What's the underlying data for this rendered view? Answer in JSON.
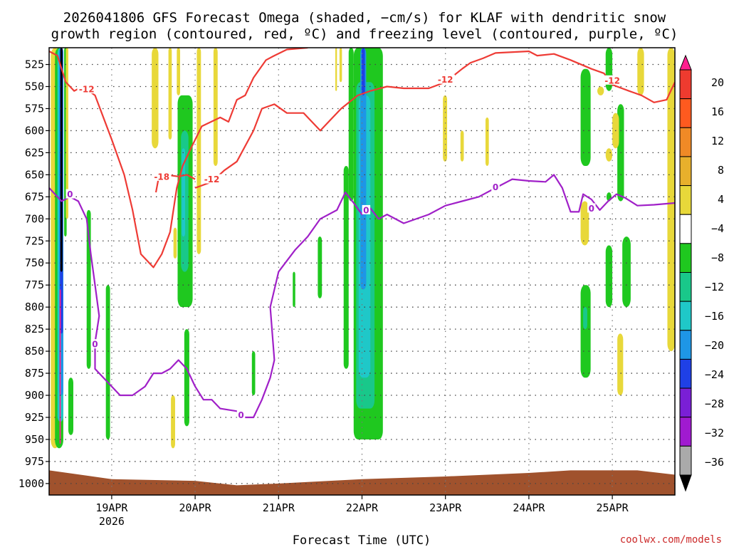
{
  "chart_data": {
    "type": "heatmap",
    "title_lines": [
      "2026041806 GFS Forecast Omega (shaded, −cm/s) for KLAF with dendritic snow",
      "growth region (contoured, red, ºC) and freezing level (contoured, purple, ºC)"
    ],
    "xlabel": "Forecast Time (UTC)",
    "ylabel": "",
    "y_ticks": [
      525,
      550,
      575,
      600,
      625,
      650,
      675,
      700,
      725,
      750,
      775,
      800,
      825,
      850,
      875,
      900,
      925,
      950,
      975,
      1000
    ],
    "y_range": [
      1013,
      506
    ],
    "x_range": [
      -0.75,
      6.75
    ],
    "x_ticks": [
      {
        "day": 0,
        "label": "19APR",
        "sub": "2026"
      },
      {
        "day": 1,
        "label": "20APR",
        "sub": ""
      },
      {
        "day": 2,
        "label": "21APR",
        "sub": ""
      },
      {
        "day": 3,
        "label": "22APR",
        "sub": ""
      },
      {
        "day": 4,
        "label": "23APR",
        "sub": ""
      },
      {
        "day": 5,
        "label": "24APR",
        "sub": ""
      },
      {
        "day": 6,
        "label": "25APR",
        "sub": ""
      }
    ],
    "grid": true,
    "colorbar": {
      "labels": [
        "20",
        "16",
        "12",
        "8",
        "4",
        "−4",
        "−8",
        "−12",
        "−16",
        "−20",
        "−24",
        "−28",
        "−32",
        "−36"
      ],
      "colors": [
        "#ff1f8f",
        "#ee3b2f",
        "#ff5a1f",
        "#f08a26",
        "#e8b02c",
        "#e8d83a",
        "#ffffff",
        "#1fc81f",
        "#19c88a",
        "#1fc8c8",
        "#1e96e6",
        "#1f40e6",
        "#7a1fd6",
        "#a01ad0",
        "#aaaaaa",
        "#000000"
      ]
    },
    "omega_features": [
      {
        "x0": -0.73,
        "x1": -0.63,
        "p0": 506,
        "p1": 960,
        "color": "#e8d83a"
      },
      {
        "x0": -0.68,
        "x1": -0.58,
        "p0": 506,
        "p1": 960,
        "color": "#1fc81f"
      },
      {
        "x0": -0.65,
        "x1": -0.58,
        "p0": 506,
        "p1": 930,
        "color": "#1fc8c8"
      },
      {
        "x0": -0.63,
        "x1": -0.58,
        "p0": 506,
        "p1": 900,
        "color": "#1e96e6"
      },
      {
        "x0": -0.62,
        "x1": -0.585,
        "p0": 506,
        "p1": 830,
        "color": "#1f40e6"
      },
      {
        "x0": -0.615,
        "x1": -0.59,
        "p0": 506,
        "p1": 760,
        "color": "#000000"
      },
      {
        "x0": -0.625,
        "x1": -0.61,
        "p0": 780,
        "p1": 955,
        "color": "#ff1f8f"
      },
      {
        "x0": -0.57,
        "x1": -0.54,
        "p0": 506,
        "p1": 720,
        "color": "#1fc81f"
      },
      {
        "x0": -0.55,
        "x1": -0.52,
        "p0": 506,
        "p1": 700,
        "color": "#e8d83a"
      },
      {
        "x0": -0.52,
        "x1": -0.46,
        "p0": 880,
        "p1": 945,
        "color": "#1fc81f"
      },
      {
        "x0": -0.3,
        "x1": -0.25,
        "p0": 690,
        "p1": 870,
        "color": "#1fc81f"
      },
      {
        "x0": -0.07,
        "x1": -0.02,
        "p0": 775,
        "p1": 950,
        "color": "#1fc81f"
      },
      {
        "x0": 0.48,
        "x1": 0.56,
        "p0": 506,
        "p1": 620,
        "color": "#e8d83a"
      },
      {
        "x0": 0.68,
        "x1": 0.72,
        "p0": 506,
        "p1": 610,
        "color": "#e8d83a"
      },
      {
        "x0": 0.78,
        "x1": 0.82,
        "p0": 506,
        "p1": 560,
        "color": "#e8d83a"
      },
      {
        "x0": 0.74,
        "x1": 0.78,
        "p0": 710,
        "p1": 745,
        "color": "#e8d83a"
      },
      {
        "x0": 0.79,
        "x1": 0.97,
        "p0": 560,
        "p1": 800,
        "color": "#1fc81f"
      },
      {
        "x0": 0.83,
        "x1": 0.92,
        "p0": 600,
        "p1": 760,
        "color": "#19c88a"
      },
      {
        "x0": 0.84,
        "x1": 0.88,
        "p0": 620,
        "p1": 720,
        "color": "#1fc8c8"
      },
      {
        "x0": 0.71,
        "x1": 0.76,
        "p0": 900,
        "p1": 960,
        "color": "#e8d83a"
      },
      {
        "x0": 0.87,
        "x1": 0.93,
        "p0": 825,
        "p1": 935,
        "color": "#1fc81f"
      },
      {
        "x0": 1.02,
        "x1": 1.07,
        "p0": 506,
        "p1": 740,
        "color": "#e8d83a"
      },
      {
        "x0": 1.22,
        "x1": 1.27,
        "p0": 506,
        "p1": 640,
        "color": "#e8d83a"
      },
      {
        "x0": 1.68,
        "x1": 1.72,
        "p0": 850,
        "p1": 900,
        "color": "#1fc81f"
      },
      {
        "x0": 2.17,
        "x1": 2.2,
        "p0": 760,
        "p1": 800,
        "color": "#1fc81f"
      },
      {
        "x0": 2.47,
        "x1": 2.52,
        "p0": 720,
        "p1": 790,
        "color": "#1fc81f"
      },
      {
        "x0": 2.68,
        "x1": 2.7,
        "p0": 506,
        "p1": 555,
        "color": "#e8d83a"
      },
      {
        "x0": 2.73,
        "x1": 2.76,
        "p0": 506,
        "p1": 545,
        "color": "#e8d83a"
      },
      {
        "x0": 2.78,
        "x1": 2.84,
        "p0": 640,
        "p1": 870,
        "color": "#1fc81f"
      },
      {
        "x0": 2.84,
        "x1": 2.9,
        "p0": 506,
        "p1": 680,
        "color": "#1fc81f"
      },
      {
        "x0": 2.9,
        "x1": 3.25,
        "p0": 506,
        "p1": 950,
        "color": "#1fc81f"
      },
      {
        "x0": 2.93,
        "x1": 3.15,
        "p0": 545,
        "p1": 915,
        "color": "#19c88a"
      },
      {
        "x0": 2.96,
        "x1": 3.1,
        "p0": 560,
        "p1": 880,
        "color": "#1fc8c8"
      },
      {
        "x0": 2.98,
        "x1": 3.05,
        "p0": 506,
        "p1": 780,
        "color": "#1e96e6"
      },
      {
        "x0": 2.995,
        "x1": 3.035,
        "p0": 506,
        "p1": 560,
        "color": "#1f40e6"
      },
      {
        "x0": 3.97,
        "x1": 4.02,
        "p0": 560,
        "p1": 635,
        "color": "#e8d83a"
      },
      {
        "x0": 4.18,
        "x1": 4.22,
        "p0": 600,
        "p1": 635,
        "color": "#e8d83a"
      },
      {
        "x0": 4.48,
        "x1": 4.52,
        "p0": 585,
        "p1": 640,
        "color": "#e8d83a"
      },
      {
        "x0": 5.62,
        "x1": 5.74,
        "p0": 530,
        "p1": 640,
        "color": "#1fc81f"
      },
      {
        "x0": 5.62,
        "x1": 5.72,
        "p0": 680,
        "p1": 730,
        "color": "#e8d83a"
      },
      {
        "x0": 5.62,
        "x1": 5.74,
        "p0": 775,
        "p1": 880,
        "color": "#1fc81f"
      },
      {
        "x0": 5.65,
        "x1": 5.7,
        "p0": 800,
        "p1": 825,
        "color": "#19c88a"
      },
      {
        "x0": 5.82,
        "x1": 5.9,
        "p0": 550,
        "p1": 560,
        "color": "#e8d83a"
      },
      {
        "x0": 5.92,
        "x1": 6.0,
        "p0": 506,
        "p1": 555,
        "color": "#1fc81f"
      },
      {
        "x0": 5.92,
        "x1": 6.0,
        "p0": 620,
        "p1": 635,
        "color": "#e8d83a"
      },
      {
        "x0": 5.93,
        "x1": 5.99,
        "p0": 670,
        "p1": 680,
        "color": "#1fc81f"
      },
      {
        "x0": 5.92,
        "x1": 6.0,
        "p0": 730,
        "p1": 800,
        "color": "#1fc81f"
      },
      {
        "x0": 6.12,
        "x1": 6.22,
        "p0": 720,
        "p1": 800,
        "color": "#1fc81f"
      },
      {
        "x0": 6.06,
        "x1": 6.14,
        "p0": 570,
        "p1": 680,
        "color": "#1fc81f"
      },
      {
        "x0": 6.0,
        "x1": 6.08,
        "p0": 580,
        "p1": 620,
        "color": "#e8d83a"
      },
      {
        "x0": 6.06,
        "x1": 6.13,
        "p0": 830,
        "p1": 900,
        "color": "#e8d83a"
      },
      {
        "x0": 6.3,
        "x1": 6.38,
        "p0": 506,
        "p1": 560,
        "color": "#e8d83a"
      },
      {
        "x0": 6.66,
        "x1": 6.75,
        "p0": 506,
        "p1": 850,
        "color": "#e8d83a"
      }
    ],
    "surface": {
      "color": "#a0522d",
      "points": [
        [
          -0.75,
          985
        ],
        [
          0.0,
          995
        ],
        [
          1.0,
          997
        ],
        [
          1.5,
          1002
        ],
        [
          2.0,
          1000
        ],
        [
          3.0,
          995
        ],
        [
          4.0,
          992
        ],
        [
          5.0,
          988
        ],
        [
          5.5,
          985
        ],
        [
          6.3,
          985
        ],
        [
          6.75,
          990
        ]
      ]
    },
    "series": [
      {
        "name": "-12",
        "color": "#ee3b35",
        "label_color": "#ee3b35",
        "points": [
          [
            -0.75,
            510
          ],
          [
            -0.65,
            515
          ],
          [
            -0.55,
            545
          ],
          [
            -0.45,
            555
          ],
          [
            -0.35,
            550
          ],
          [
            -0.2,
            560
          ],
          [
            0.0,
            610
          ],
          [
            0.15,
            650
          ],
          [
            0.25,
            690
          ],
          [
            0.35,
            740
          ],
          [
            0.5,
            755
          ],
          [
            0.6,
            740
          ],
          [
            0.7,
            715
          ],
          [
            0.78,
            665
          ],
          [
            0.85,
            640
          ],
          [
            0.95,
            620
          ],
          [
            1.08,
            595
          ],
          [
            1.3,
            585
          ],
          [
            1.4,
            590
          ],
          [
            1.5,
            565
          ],
          [
            1.6,
            560
          ],
          [
            1.7,
            540
          ],
          [
            1.85,
            520
          ],
          [
            1.95,
            515
          ],
          [
            2.1,
            508
          ],
          [
            2.35,
            506
          ]
        ],
        "labels": [
          {
            "x": -0.3,
            "p": 553,
            "text": "-12"
          }
        ]
      },
      {
        "name": "-12",
        "color": "#ee3b35",
        "label_color": "#ee3b35",
        "points": [
          [
            1.0,
            665
          ],
          [
            1.2,
            658
          ],
          [
            1.35,
            645
          ],
          [
            1.5,
            635
          ],
          [
            1.7,
            600
          ],
          [
            1.8,
            575
          ],
          [
            1.95,
            570
          ],
          [
            2.1,
            580
          ],
          [
            2.3,
            580
          ],
          [
            2.5,
            600
          ],
          [
            2.6,
            590
          ],
          [
            2.75,
            575
          ],
          [
            2.95,
            560
          ],
          [
            3.1,
            555
          ],
          [
            3.3,
            550
          ],
          [
            3.5,
            552
          ],
          [
            3.8,
            552
          ],
          [
            4.0,
            545
          ],
          [
            4.2,
            530
          ],
          [
            4.3,
            523
          ],
          [
            4.45,
            518
          ],
          [
            4.6,
            512
          ],
          [
            5.0,
            510
          ],
          [
            5.1,
            515
          ],
          [
            5.3,
            513
          ],
          [
            5.5,
            520
          ],
          [
            5.55,
            522
          ],
          [
            5.75,
            530
          ],
          [
            5.9,
            535
          ],
          [
            6.0,
            548
          ],
          [
            6.2,
            555
          ],
          [
            6.35,
            560
          ],
          [
            6.5,
            568
          ],
          [
            6.65,
            565
          ],
          [
            6.75,
            545
          ]
        ],
        "labels": [
          {
            "x": 1.2,
            "p": 655,
            "text": "-12"
          },
          {
            "x": 4.0,
            "p": 542,
            "text": "-12"
          },
          {
            "x": 6.0,
            "p": 543,
            "text": "-12"
          }
        ]
      },
      {
        "name": "-18",
        "color": "#ee3b35",
        "label_color": "#ee3b35",
        "points": [
          [
            0.53,
            670
          ],
          [
            0.56,
            655
          ],
          [
            0.65,
            650
          ],
          [
            0.8,
            652
          ],
          [
            0.9,
            650
          ],
          [
            1.0,
            655
          ]
        ],
        "labels": [
          {
            "x": 0.6,
            "p": 652,
            "text": "-18"
          }
        ]
      },
      {
        "name": "0",
        "color": "#a020c8",
        "label_color": "#a020c8",
        "points": [
          [
            -0.75,
            665
          ],
          [
            -0.6,
            680
          ],
          [
            -0.5,
            675
          ],
          [
            -0.4,
            680
          ],
          [
            -0.3,
            700
          ],
          [
            -0.25,
            740
          ],
          [
            -0.2,
            775
          ],
          [
            -0.15,
            810
          ],
          [
            -0.2,
            840
          ],
          [
            -0.2,
            870
          ],
          [
            -0.1,
            880
          ],
          [
            0.0,
            890
          ],
          [
            0.1,
            900
          ],
          [
            0.25,
            900
          ],
          [
            0.4,
            890
          ],
          [
            0.5,
            875
          ],
          [
            0.6,
            875
          ],
          [
            0.7,
            870
          ],
          [
            0.8,
            860
          ],
          [
            0.9,
            870
          ],
          [
            1.0,
            890
          ],
          [
            1.1,
            905
          ],
          [
            1.2,
            905
          ],
          [
            1.3,
            915
          ],
          [
            1.5,
            918
          ],
          [
            1.6,
            925
          ],
          [
            1.7,
            925
          ],
          [
            1.8,
            905
          ],
          [
            1.9,
            880
          ],
          [
            1.95,
            860
          ],
          [
            1.9,
            800
          ],
          [
            2.0,
            760
          ],
          [
            2.2,
            735
          ],
          [
            2.35,
            720
          ],
          [
            2.5,
            700
          ],
          [
            2.7,
            690
          ],
          [
            2.8,
            670
          ],
          [
            2.9,
            682
          ],
          [
            3.0,
            695
          ],
          [
            3.1,
            688
          ],
          [
            3.2,
            700
          ],
          [
            3.3,
            695
          ],
          [
            3.5,
            705
          ],
          [
            3.8,
            695
          ],
          [
            4.0,
            685
          ],
          [
            4.2,
            680
          ],
          [
            4.4,
            675
          ],
          [
            4.6,
            665
          ],
          [
            4.8,
            655
          ],
          [
            5.0,
            657
          ],
          [
            5.2,
            658
          ],
          [
            5.3,
            650
          ],
          [
            5.4,
            665
          ],
          [
            5.5,
            692
          ],
          [
            5.6,
            692
          ],
          [
            5.65,
            672
          ],
          [
            5.75,
            678
          ],
          [
            5.85,
            690
          ],
          [
            5.95,
            680
          ],
          [
            6.05,
            672
          ],
          [
            6.15,
            676
          ],
          [
            6.3,
            685
          ],
          [
            6.5,
            684
          ],
          [
            6.75,
            682
          ]
        ],
        "labels": [
          {
            "x": -0.5,
            "p": 672,
            "text": "0"
          },
          {
            "x": -0.2,
            "p": 842,
            "text": "0"
          },
          {
            "x": 1.55,
            "p": 922,
            "text": "0"
          },
          {
            "x": 3.05,
            "p": 690,
            "text": "0"
          },
          {
            "x": 4.6,
            "p": 664,
            "text": "0"
          },
          {
            "x": 5.75,
            "p": 688,
            "text": "0"
          }
        ]
      }
    ]
  },
  "credit": "coolwx.com/models"
}
